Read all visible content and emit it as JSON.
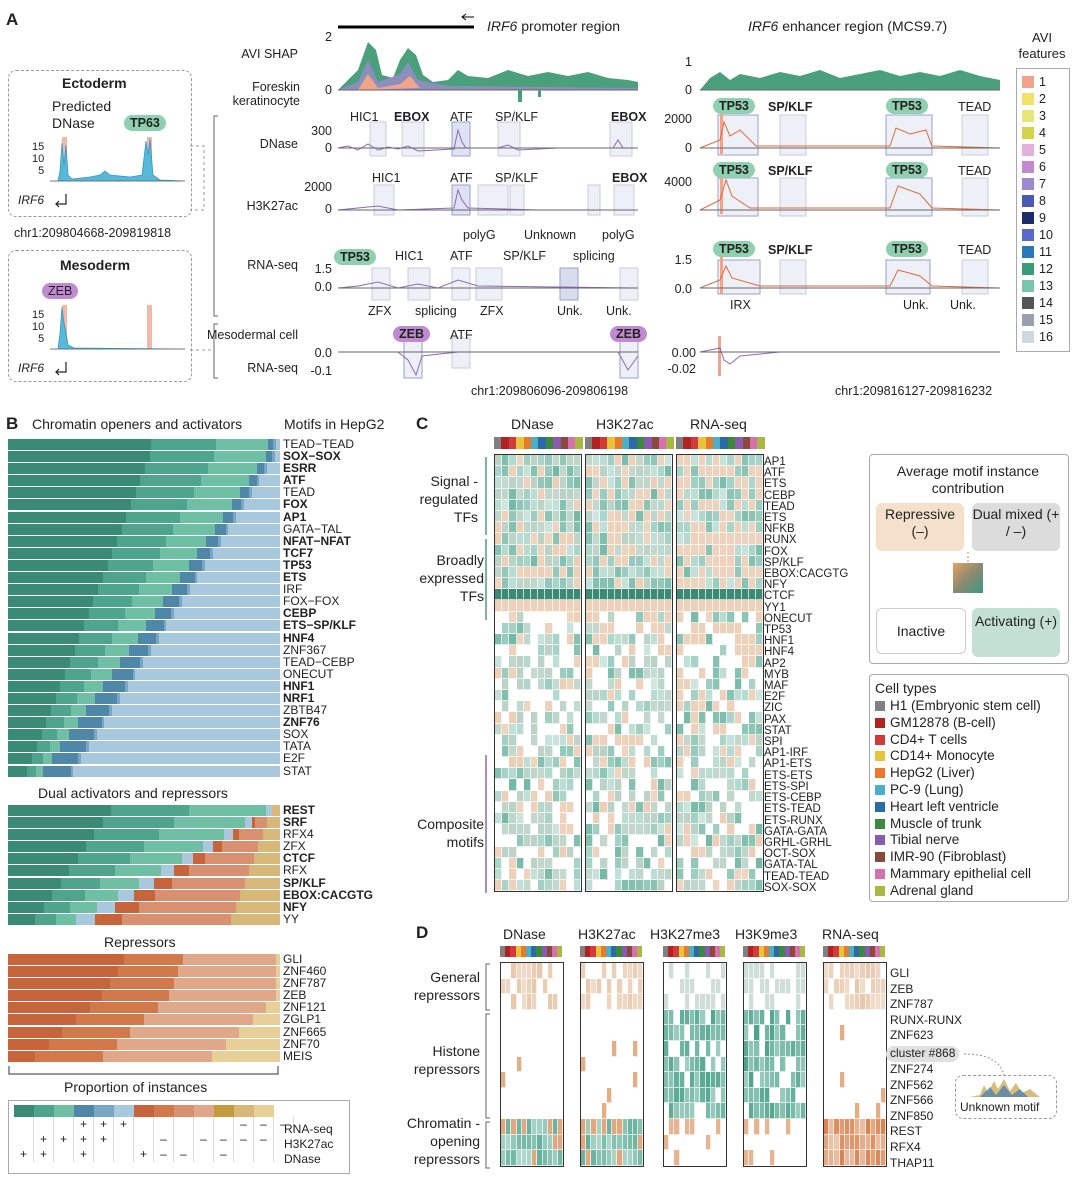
{
  "panelA": {
    "letter": "A",
    "ecto": {
      "title": "Ectoderm",
      "predicted": "Predicted",
      "dnase": "DNase",
      "tf": "TP63",
      "gene": "IRF6",
      "yticks": [
        "15",
        "10",
        "5"
      ]
    },
    "meso": {
      "title": "Mesoderm",
      "tf": "ZEB",
      "gene": "IRF6",
      "yticks": [
        "15",
        "10",
        "5"
      ]
    },
    "coords_left": "chr1:209804668-209819818",
    "promoter_title_gene": "IRF6",
    "promoter_title_rest": " promoter region",
    "enhancer_title_gene": "IRF6",
    "enhancer_title_rest": " enhancer region (MCS9.7)",
    "track_labels": [
      "AVI SHAP",
      "Foreskin keratinocyte",
      "DNase",
      "H3K27ac",
      "RNA-seq",
      "Mesodermal cell",
      "RNA-seq"
    ],
    "prom_ticks": {
      "shap": [
        "2",
        "0"
      ],
      "dnase": [
        "300",
        "0"
      ],
      "h3k27ac": [
        "2000",
        "0"
      ],
      "rna": [
        "1.5",
        "0.0"
      ],
      "meso": [
        "0.0",
        "-0.1"
      ]
    },
    "enh_ticks": {
      "shap": [
        "1",
        "0"
      ],
      "dnase": [
        "2000",
        "0"
      ],
      "h3k27ac": [
        "4000",
        "0"
      ],
      "rna": [
        "1.5",
        "0.0"
      ],
      "meso": [
        "0.00",
        "-0.02"
      ]
    },
    "prom_motifs": {
      "dnase": [
        "HIC1",
        "EBOX",
        "ATF",
        "SP/KLF",
        "EBOX"
      ],
      "h3k27ac": [
        "HIC1",
        "ATF",
        "SP/KLF",
        "EBOX"
      ],
      "h3k27ac_below": [
        "polyG",
        "Unknown",
        "polyG"
      ],
      "rna": [
        "TP53",
        "HIC1",
        "ATF",
        "SP/KLF",
        "splicing"
      ],
      "rna_below": [
        "ZFX",
        "splicing",
        "ZFX",
        "Unk.",
        "Unk."
      ],
      "meso": [
        "ZEB",
        "ATF",
        "ZEB"
      ]
    },
    "enh_motifs": {
      "dnase": [
        "TP53",
        "SP/KLF",
        "TP53",
        "TEAD"
      ],
      "h3k27ac": [
        "TP53",
        "SP/KLF",
        "TP53",
        "TEAD"
      ],
      "rna": [
        "TP53",
        "SP/KLF",
        "TP53",
        "TEAD"
      ],
      "rna_below": [
        "IRX",
        "Unk.",
        "Unk."
      ]
    },
    "coords_prom": "chr1:209806096-209806198",
    "coords_enh": "chr1:209816127-209816232",
    "avi_legend": {
      "title": "AVI features",
      "items": [
        "1",
        "2",
        "3",
        "4",
        "5",
        "6",
        "7",
        "8",
        "9",
        "10",
        "11",
        "12",
        "13",
        "14",
        "15",
        "16"
      ],
      "colors": [
        "#f2a48a",
        "#f5e06a",
        "#e6e67a",
        "#d4d44a",
        "#e4b0dc",
        "#c48ad0",
        "#9c8ad0",
        "#4a5ab0",
        "#1e2a6a",
        "#5a6ac8",
        "#2a78b8",
        "#3a9a7a",
        "#7ac4a8",
        "#555555",
        "#9aa0b0",
        "#cfd8e0"
      ]
    }
  },
  "panelB": {
    "letter": "B",
    "title_left": "Chromatin openers and activators",
    "title_right": "Motifs in HepG2",
    "openers": [
      "TEAD−TEAD",
      "SOX−SOX",
      "ESRR",
      "ATF",
      "TEAD",
      "FOX",
      "AP1",
      "GATA−TAL",
      "NFAT−NFAT",
      "TCF7",
      "TP53",
      "ETS",
      "IRF",
      "FOX−FOX",
      "CEBP",
      "ETS−SP/KLF",
      "HNF4",
      "ZNF367",
      "TEAD−CEBP",
      "ONECUT",
      "HNF1",
      "NRF1",
      "ZBTB47",
      "ZNF76",
      "SOX",
      "TATA",
      "E2F",
      "STAT"
    ],
    "openers_bold": [
      "SOX−SOX",
      "ESRR",
      "ATF",
      "FOX",
      "AP1",
      "NFAT−NFAT",
      "TCF7",
      "TP53",
      "ETS",
      "CEBP",
      "ETS−SP/KLF",
      "HNF4",
      "HNF1",
      "NRF1",
      "ZNF76"
    ],
    "dual_title": "Dual activators and repressors",
    "dual": [
      "REST",
      "SRF",
      "RFX4",
      "ZFX",
      "CTCF",
      "RFX",
      "SP/KLF",
      "EBOX:CACGTG",
      "NFY",
      "YY"
    ],
    "dual_bold": [
      "REST",
      "SRF",
      "CTCF",
      "SP/KLF",
      "EBOX:CACGTG",
      "NFY"
    ],
    "rep_title": "Repressors",
    "repressors": [
      "GLI",
      "ZNF460",
      "ZNF787",
      "ZEB",
      "ZNF121",
      "ZGLP1",
      "ZNF665",
      "ZNF70",
      "MEIS"
    ],
    "xlabel": "Proportion of instances",
    "key_rows": [
      "RNA-seq",
      "H3K27ac",
      "DNase"
    ],
    "key_colors": [
      "#3a8a76",
      "#4ea58c",
      "#6fbfa4",
      "#4f87a8",
      "#78a7c6",
      "#a8c8de",
      "#c8643c",
      "#d2784a",
      "#d89070",
      "#e0a888",
      "#c49a3c",
      "#d8b878",
      "#e8cf98"
    ],
    "key_signs": [
      [
        "",
        "",
        "",
        "+",
        "+",
        "+",
        "",
        "",
        "",
        "",
        "",
        "–",
        "–",
        "–"
      ],
      [
        "",
        "+",
        "+",
        "+",
        "+",
        "",
        "",
        "–",
        "",
        "–",
        "–",
        "–",
        "–"
      ],
      [
        "+",
        "+",
        "",
        "+",
        "",
        "",
        "+",
        "–",
        "–",
        "",
        "–",
        "",
        ""
      ]
    ]
  },
  "panelC": {
    "letter": "C",
    "cols": [
      "DNase",
      "H3K27ac",
      "RNA-seq"
    ],
    "groups": [
      "Signal -regulated TFs",
      "Broadly expressed TFs",
      "Composite motifs"
    ],
    "rows": [
      "AP1",
      "ATF",
      "ETS",
      "CEBP",
      "TEAD",
      "ETS",
      "NFKB",
      "RUNX",
      "FOX",
      "SP/KLF",
      "EBOX:CACGTG",
      "NFY",
      "CTCF",
      "YY1",
      "ONECUT",
      "TP53",
      "HNF1",
      "HNF4",
      "AP2",
      "MYB",
      "MAF",
      "E2F",
      "ZIC",
      "PAX",
      "STAT",
      "SPI",
      "AP1-IRF",
      "AP1-ETS",
      "ETS-ETS",
      "ETS-SPI",
      "ETS-CEBP",
      "ETS-TEAD",
      "ETS-RUNX",
      "GATA-GATA",
      "GRHL-GRHL",
      "OCT-SOX",
      "GATA-TAL",
      "TEAD-TEAD",
      "SOX-SOX"
    ],
    "legend_title": "Average motif instance contribution",
    "legend_boxes": [
      "Repressive (–)",
      "Dual mixed (+ / –)",
      "Inactive",
      "Activating (+)"
    ],
    "celltypes_title": "Cell types",
    "celltypes": [
      "H1 (Embryonic stem cell)",
      "GM12878 (B-cell)",
      "CD4+ T cells",
      "CD14+ Monocyte",
      "HepG2 (Liver)",
      "PC-9 (Lung)",
      "Heart left ventricle",
      "Muscle of trunk",
      "Tibial nerve",
      "IMR-90 (Fibroblast)",
      "Mammary epithelial cell",
      "Adrenal gland"
    ],
    "celltype_colors": [
      "#808080",
      "#b22222",
      "#d43a3a",
      "#e8c43a",
      "#e87a2a",
      "#4ab0c8",
      "#2a6aa8",
      "#3a8a3a",
      "#8a5ab0",
      "#8a4a3a",
      "#d870b0",
      "#a8b840"
    ]
  },
  "panelD": {
    "letter": "D",
    "cols": [
      "DNase",
      "H3K27ac",
      "H3K27me3",
      "H3K9me3",
      "RNA-seq"
    ],
    "groups": [
      "General repressors",
      "Histone repressors",
      "Chromatin -opening repressors"
    ],
    "rows": [
      "GLI",
      "ZEB",
      "ZNF787",
      "RUNX-RUNX",
      "ZNF623",
      "cluster #868",
      "ZNF274",
      "ZNF562",
      "ZNF566",
      "ZNF850",
      "REST",
      "RFX4",
      "THAP11"
    ],
    "unknown_motif": "Unknown motif"
  },
  "colors": {
    "activating": "#3a9a80",
    "repressive": "#d8a070",
    "inactive": "#ffffff"
  }
}
